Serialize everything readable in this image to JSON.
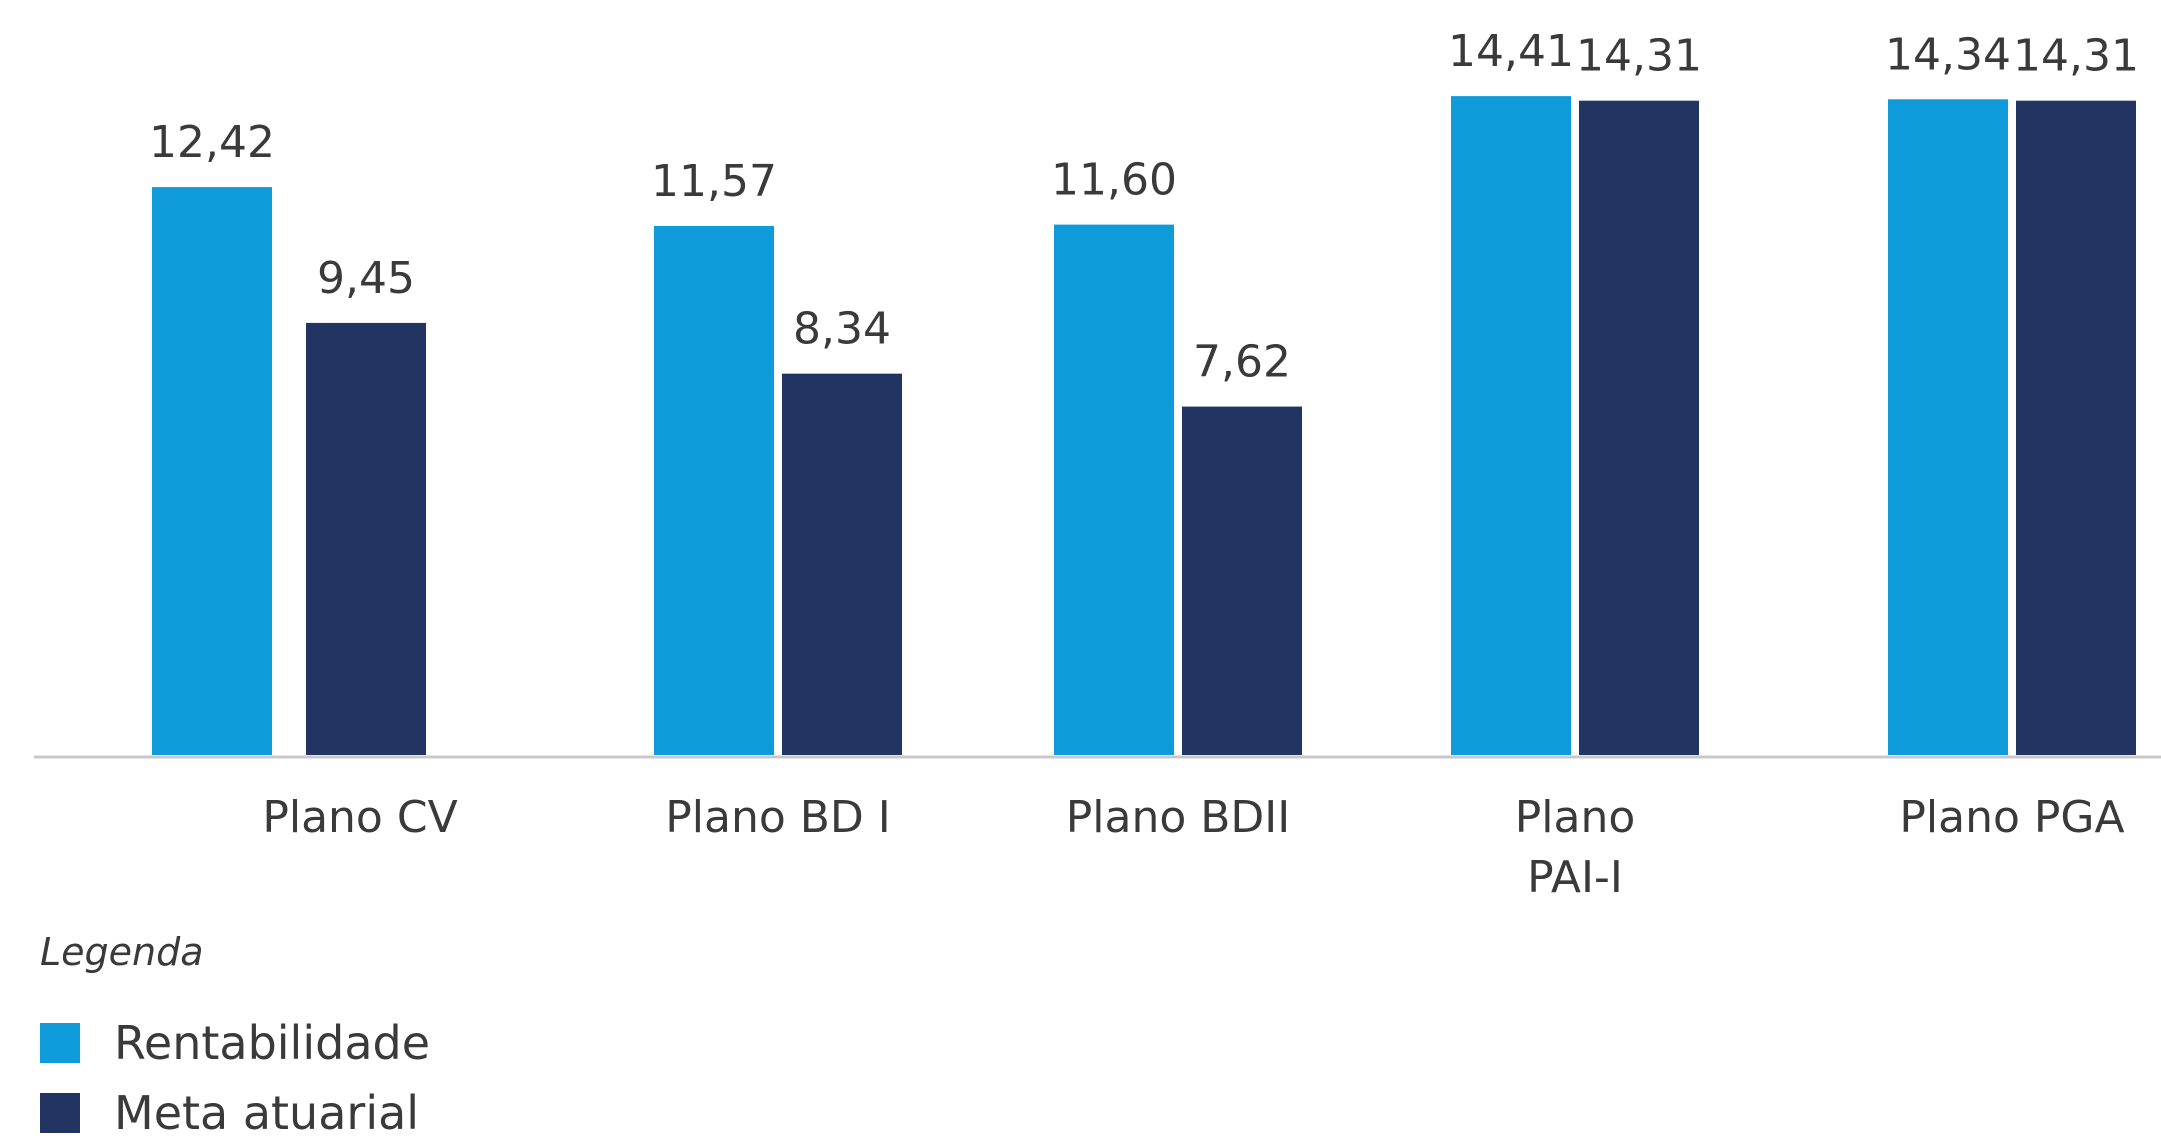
{
  "chart_data": {
    "type": "bar",
    "categories": [
      "Plano CV",
      "Plano BD I",
      "Plano BDII",
      "Plano PAI-I",
      "Plano PGA"
    ],
    "category_lines": [
      [
        "Plano CV"
      ],
      [
        "Plano BD I"
      ],
      [
        "Plano BDII"
      ],
      [
        "Plano",
        "PAI-I"
      ],
      [
        "Plano PGA"
      ]
    ],
    "series": [
      {
        "name": "Rentabilidade",
        "color": "#0f9ad9",
        "values": [
          12.42,
          11.57,
          11.6,
          14.41,
          14.34
        ],
        "labels": [
          "12,42",
          "11,57",
          "11,60",
          "14,41",
          "14,34"
        ]
      },
      {
        "name": "Meta atuarial",
        "color": "#223461",
        "values": [
          9.45,
          8.34,
          7.62,
          14.31,
          14.31
        ],
        "labels": [
          "9,45",
          "8,34",
          "7,62",
          "14,31",
          "14,31"
        ]
      }
    ],
    "ylim": [
      0,
      14.5
    ],
    "grid": false,
    "legend_title": "Legenda",
    "legend_position": "bottom-left"
  }
}
